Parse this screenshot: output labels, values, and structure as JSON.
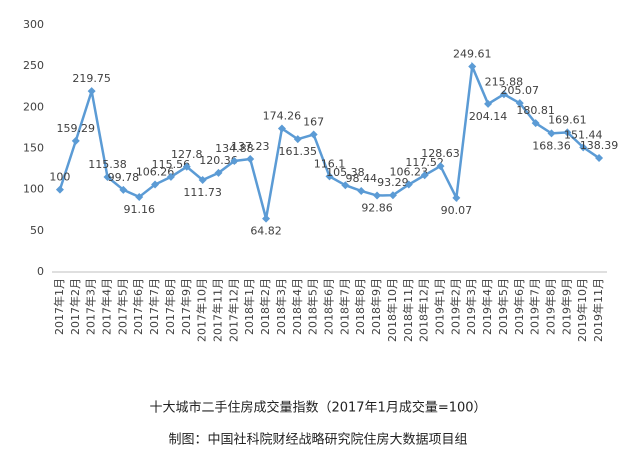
{
  "chart_data": {
    "type": "line",
    "title": "十大城市二手住房成交量指数（2017年1月成交量=100）",
    "source": "制图：中国社科院财经战略研究院住房大数据项目组",
    "categories": [
      "2017年1月",
      "2017年2月",
      "2017年3月",
      "2017年4月",
      "2017年5月",
      "2017年6月",
      "2017年7月",
      "2017年8月",
      "2017年9月",
      "2017年10月",
      "2017年11月",
      "2017年12月",
      "2018年1月",
      "2018年2月",
      "2018年3月",
      "2018年4月",
      "2018年5月",
      "2018年6月",
      "2018年7月",
      "2018年8月",
      "2018年9月",
      "2018年10月",
      "2018年11月",
      "2018年12月",
      "2019年1月",
      "2019年2月",
      "2019年3月",
      "2019年4月",
      "2019年5月",
      "2019年6月",
      "2019年7月",
      "2019年8月",
      "2019年9月",
      "2019年10月",
      "2019年11月"
    ],
    "values": [
      100,
      159.29,
      219.75,
      115.38,
      99.78,
      91.16,
      106.26,
      115.56,
      127.8,
      111.73,
      120.36,
      134.88,
      137.23,
      64.82,
      174.26,
      161.35,
      167,
      116.1,
      105.38,
      98.44,
      92.86,
      93.29,
      106.23,
      117.52,
      128.63,
      90.07,
      249.61,
      204.14,
      215.88,
      205.07,
      180.81,
      168.36,
      169.61,
      151.44,
      138.39
    ],
    "color": "#5b9bd5",
    "ylim": [
      0,
      300
    ],
    "yticks": [
      0,
      50,
      100,
      150,
      200,
      250,
      300
    ],
    "grid": false
  }
}
